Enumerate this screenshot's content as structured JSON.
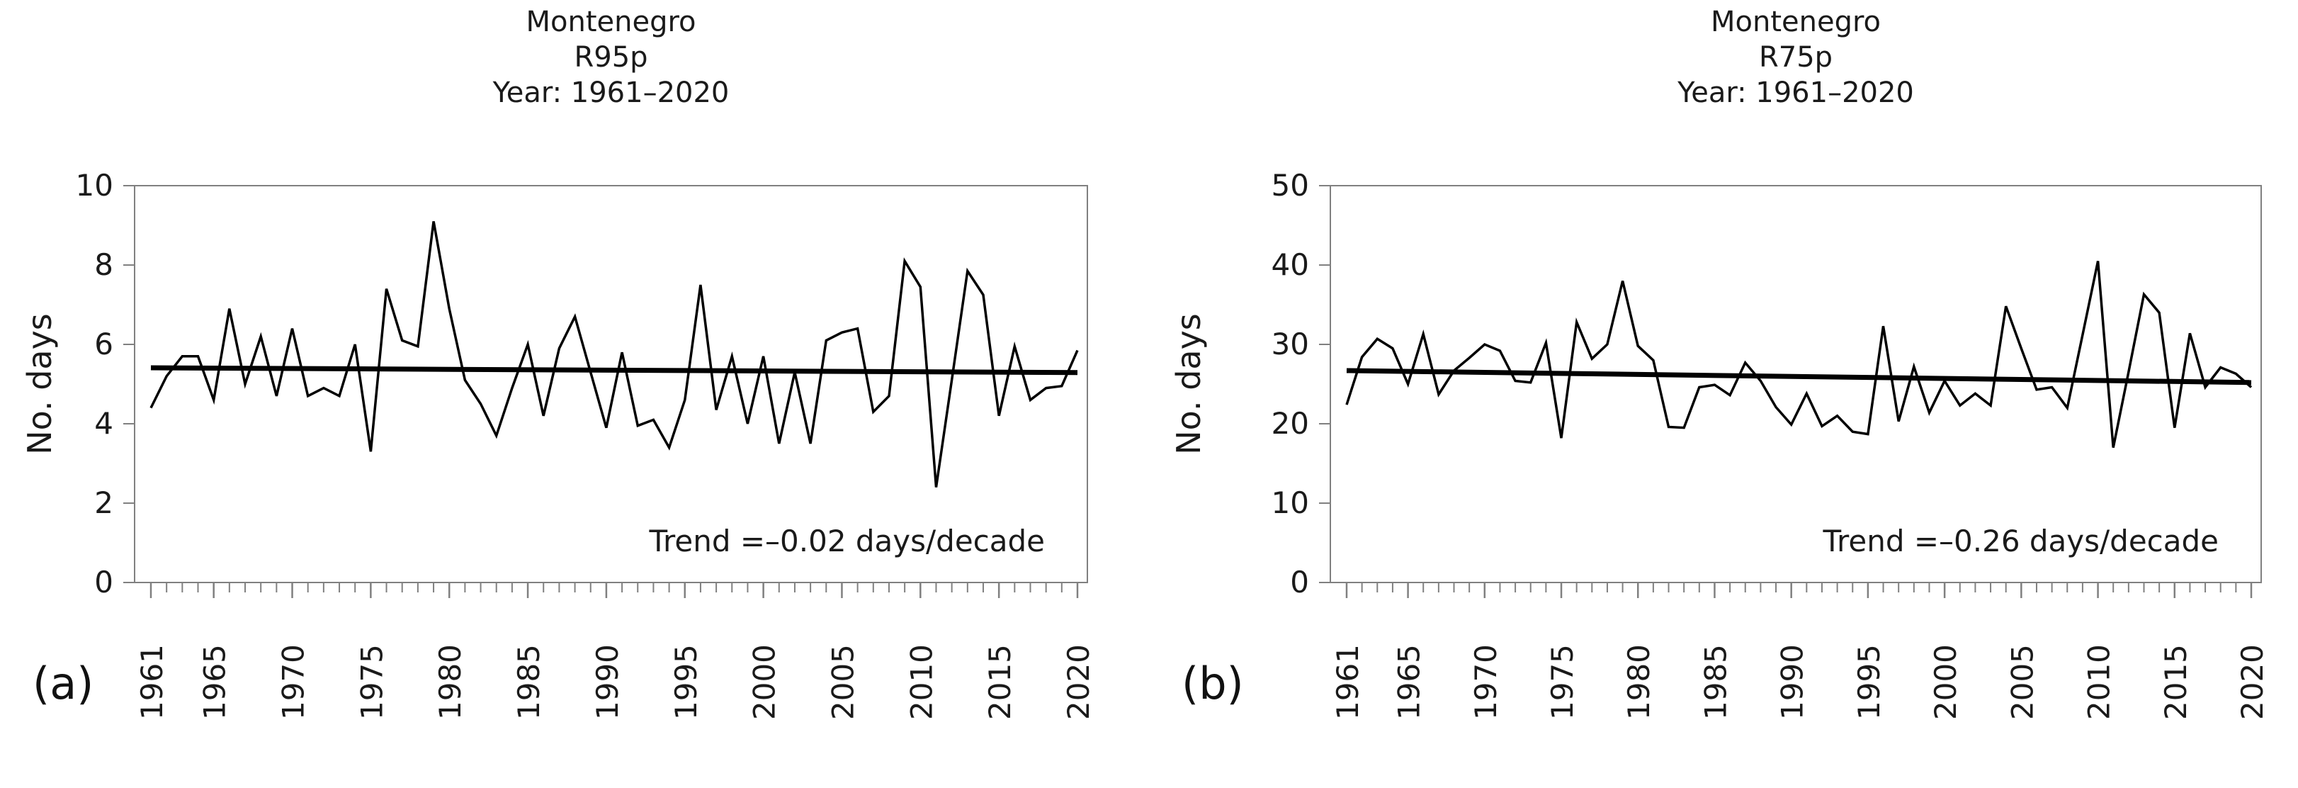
{
  "colors": {
    "series_line": "#000000",
    "trend_line": "#000000",
    "axis_frame": "#808080",
    "text": "#1a1a1a"
  },
  "panels": [
    {
      "letter": "(a)"
    },
    {
      "letter": "(b)"
    }
  ],
  "chart_data": [
    {
      "type": "line",
      "title": "Montenegro",
      "subtitle": "R95p",
      "period": "Year: 1961–2020",
      "ylabel": "No. days",
      "xlabel": "",
      "ylim": [
        0,
        10
      ],
      "yticks": [
        0,
        2,
        4,
        6,
        8,
        10
      ],
      "xticks_labeled": [
        1961,
        1965,
        1970,
        1975,
        1980,
        1985,
        1990,
        1995,
        2000,
        2005,
        2010,
        2015,
        2020
      ],
      "grid": false,
      "legend_position": "none",
      "x": [
        1961,
        1962,
        1963,
        1964,
        1965,
        1966,
        1967,
        1968,
        1969,
        1970,
        1971,
        1972,
        1973,
        1974,
        1975,
        1976,
        1977,
        1978,
        1979,
        1980,
        1981,
        1982,
        1983,
        1984,
        1985,
        1986,
        1987,
        1988,
        1989,
        1990,
        1991,
        1992,
        1993,
        1994,
        1995,
        1996,
        1997,
        1998,
        1999,
        2000,
        2001,
        2002,
        2003,
        2004,
        2005,
        2006,
        2007,
        2008,
        2009,
        2010,
        2011,
        2012,
        2013,
        2014,
        2015,
        2016,
        2017,
        2018,
        2019,
        2020
      ],
      "values": [
        4.4,
        5.2,
        5.7,
        5.7,
        4.6,
        6.9,
        5.0,
        6.2,
        4.7,
        6.4,
        4.7,
        4.9,
        4.7,
        6.0,
        3.3,
        7.4,
        6.1,
        5.95,
        9.1,
        6.9,
        5.1,
        4.5,
        3.7,
        4.9,
        6.0,
        4.2,
        5.9,
        6.7,
        5.3,
        3.9,
        5.8,
        3.95,
        4.1,
        3.4,
        4.6,
        7.5,
        4.35,
        5.7,
        4.0,
        5.7,
        3.5,
        5.3,
        3.5,
        6.1,
        6.3,
        6.4,
        4.3,
        4.7,
        8.1,
        7.45,
        2.4,
        5.1,
        7.85,
        7.25,
        4.2,
        5.95,
        4.6,
        4.9,
        4.95,
        5.85
      ],
      "trend": {
        "label": "Trend =–0.02 days/decade",
        "slope_days_per_decade": -0.02,
        "start_value": 5.41,
        "end_value": 5.29
      }
    },
    {
      "type": "line",
      "title": "Montenegro",
      "subtitle": "R75p",
      "period": "Year: 1961–2020",
      "ylabel": "No. days",
      "xlabel": "",
      "ylim": [
        0,
        50
      ],
      "yticks": [
        0,
        10,
        20,
        30,
        40,
        50
      ],
      "xticks_labeled": [
        1961,
        1965,
        1970,
        1975,
        1980,
        1985,
        1990,
        1995,
        2000,
        2005,
        2010,
        2015,
        2020
      ],
      "grid": false,
      "legend_position": "none",
      "x": [
        1961,
        1962,
        1963,
        1964,
        1965,
        1966,
        1967,
        1968,
        1969,
        1970,
        1971,
        1972,
        1973,
        1974,
        1975,
        1976,
        1977,
        1978,
        1979,
        1980,
        1981,
        1982,
        1983,
        1984,
        1985,
        1986,
        1987,
        1988,
        1989,
        1990,
        1991,
        1992,
        1993,
        1994,
        1995,
        1996,
        1997,
        1998,
        1999,
        2000,
        2001,
        2002,
        2003,
        2004,
        2005,
        2006,
        2007,
        2008,
        2009,
        2010,
        2011,
        2012,
        2013,
        2014,
        2015,
        2016,
        2017,
        2018,
        2019,
        2020
      ],
      "values": [
        22.4,
        28.4,
        30.7,
        29.5,
        25.0,
        31.3,
        23.7,
        26.7,
        28.3,
        30.0,
        29.2,
        25.4,
        25.2,
        30.2,
        18.2,
        32.8,
        28.2,
        30.0,
        38.0,
        29.8,
        28.0,
        19.6,
        19.5,
        24.6,
        24.9,
        23.6,
        27.7,
        25.4,
        22.1,
        19.9,
        23.8,
        19.7,
        21.0,
        19.0,
        18.7,
        32.3,
        20.3,
        27.2,
        21.4,
        25.4,
        22.3,
        23.8,
        22.3,
        34.8,
        29.5,
        24.3,
        24.6,
        22.0,
        31.2,
        40.5,
        17.0,
        26.5,
        36.3,
        34.0,
        19.5,
        31.4,
        24.6,
        27.1,
        26.3,
        24.6
      ],
      "trend": {
        "label": "Trend =–0.26 days/decade",
        "slope_days_per_decade": -0.26,
        "start_value": 26.7,
        "end_value": 25.2
      }
    }
  ]
}
